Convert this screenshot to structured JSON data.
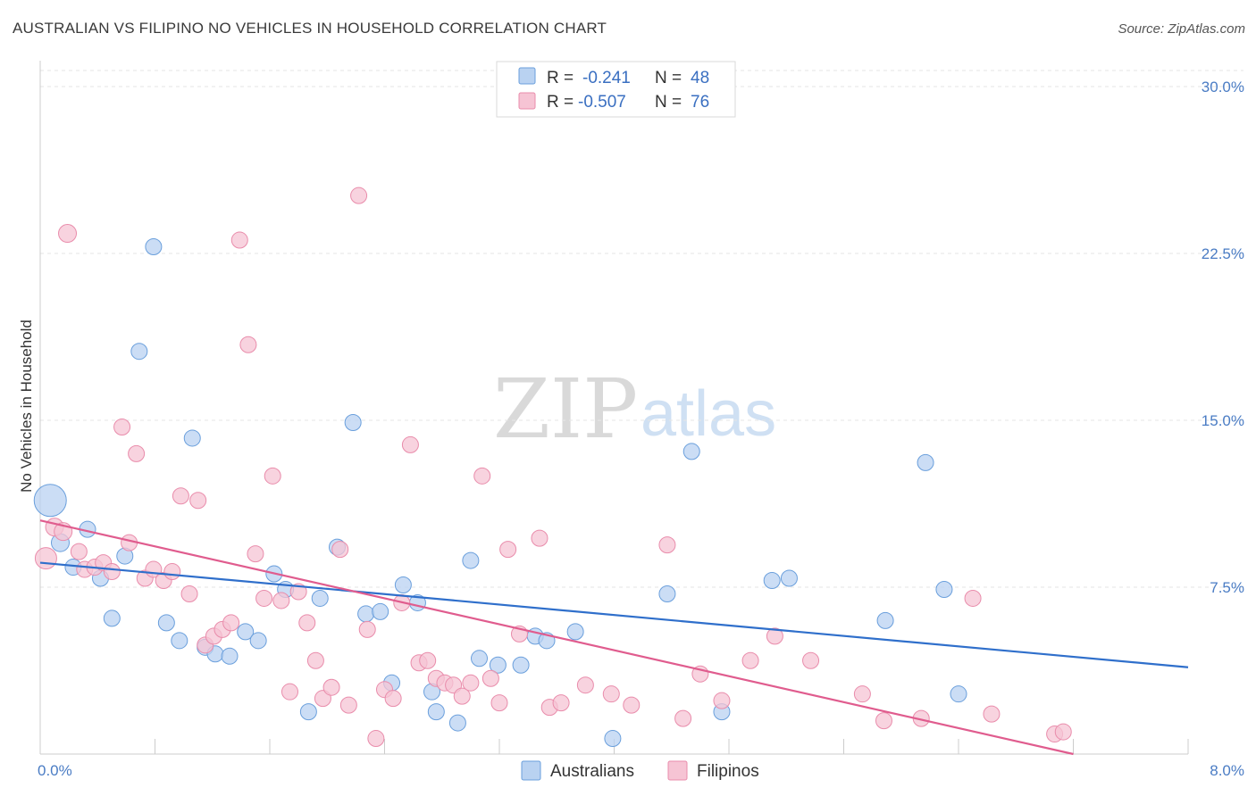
{
  "title": "AUSTRALIAN VS FILIPINO NO VEHICLES IN HOUSEHOLD CORRELATION CHART",
  "source": "Source: ZipAtlas.com",
  "watermark": {
    "zip": "ZIP",
    "atlas": "atlas"
  },
  "chart_data": {
    "type": "scatter",
    "title": "AUSTRALIAN VS FILIPINO NO VEHICLES IN HOUSEHOLD CORRELATION CHART",
    "xlabel": "",
    "ylabel": "No Vehicles in Household",
    "xlim": [
      0,
      8
    ],
    "ylim": [
      0,
      30
    ],
    "x_tick_labels": [
      "0.0%",
      "8.0%"
    ],
    "y_ticks": [
      7.5,
      15.0,
      22.5,
      30.0
    ],
    "y_tick_labels": [
      "7.5%",
      "15.0%",
      "22.5%",
      "30.0%"
    ],
    "grid": true,
    "legend": [
      {
        "name": "Australians",
        "r_label": "R =",
        "r": "-0.241",
        "n_label": "N =",
        "n": "48",
        "color": "#6a9fdc",
        "fill": "#b9d2f1",
        "line": "#2f6fcb"
      },
      {
        "name": "Filipinos",
        "r_label": "R =",
        "r": "-0.507",
        "n_label": "N =",
        "n": "76",
        "color": "#e98cab",
        "fill": "#f6c4d4",
        "line": "#e05c8e"
      }
    ],
    "series": [
      {
        "name": "Australians",
        "trend": {
          "x": [
            0.0,
            8.0
          ],
          "y": [
            8.6,
            3.9
          ]
        },
        "points": [
          [
            0.07,
            11.4,
            18
          ],
          [
            0.14,
            9.5,
            10
          ],
          [
            0.23,
            8.4,
            9
          ],
          [
            0.33,
            10.1,
            9
          ],
          [
            0.42,
            7.9,
            9
          ],
          [
            0.5,
            6.1,
            9
          ],
          [
            0.59,
            8.9,
            9
          ],
          [
            0.69,
            18.1,
            9
          ],
          [
            0.79,
            22.8,
            9
          ],
          [
            0.88,
            5.9,
            9
          ],
          [
            0.97,
            5.1,
            9
          ],
          [
            1.06,
            14.2,
            9
          ],
          [
            1.15,
            4.8,
            9
          ],
          [
            1.22,
            4.5,
            9
          ],
          [
            1.32,
            4.4,
            9
          ],
          [
            1.43,
            5.5,
            9
          ],
          [
            1.52,
            5.1,
            9
          ],
          [
            1.63,
            8.1,
            9
          ],
          [
            1.71,
            7.4,
            9
          ],
          [
            1.87,
            1.9,
            9
          ],
          [
            1.95,
            7.0,
            9
          ],
          [
            2.07,
            9.3,
            9
          ],
          [
            2.18,
            14.9,
            9
          ],
          [
            2.27,
            6.3,
            9
          ],
          [
            2.37,
            6.4,
            9
          ],
          [
            2.45,
            3.2,
            9
          ],
          [
            2.53,
            7.6,
            9
          ],
          [
            2.63,
            6.8,
            9
          ],
          [
            2.73,
            2.8,
            9
          ],
          [
            2.76,
            1.9,
            9
          ],
          [
            2.91,
            1.4,
            9
          ],
          [
            3.0,
            8.7,
            9
          ],
          [
            3.06,
            4.3,
            9
          ],
          [
            3.19,
            4.0,
            9
          ],
          [
            3.35,
            4.0,
            9
          ],
          [
            3.45,
            5.3,
            9
          ],
          [
            3.53,
            5.1,
            9
          ],
          [
            3.73,
            5.5,
            9
          ],
          [
            3.99,
            0.7,
            9
          ],
          [
            4.37,
            7.2,
            9
          ],
          [
            4.54,
            13.6,
            9
          ],
          [
            4.75,
            1.9,
            9
          ],
          [
            5.1,
            7.8,
            9
          ],
          [
            5.22,
            7.9,
            9
          ],
          [
            5.89,
            6.0,
            9
          ],
          [
            6.17,
            13.1,
            9
          ],
          [
            6.3,
            7.4,
            9
          ],
          [
            6.4,
            2.7,
            9
          ]
        ]
      },
      {
        "name": "Filipinos",
        "trend": {
          "x": [
            0.0,
            7.2
          ],
          "y": [
            10.5,
            0.0
          ]
        },
        "points": [
          [
            0.04,
            8.8,
            12
          ],
          [
            0.1,
            10.2,
            10
          ],
          [
            0.16,
            10.0,
            10
          ],
          [
            0.19,
            23.4,
            10
          ],
          [
            0.27,
            9.1,
            9
          ],
          [
            0.31,
            8.3,
            9
          ],
          [
            0.38,
            8.4,
            9
          ],
          [
            0.44,
            8.6,
            9
          ],
          [
            0.5,
            8.2,
            9
          ],
          [
            0.57,
            14.7,
            9
          ],
          [
            0.62,
            9.5,
            9
          ],
          [
            0.67,
            13.5,
            9
          ],
          [
            0.73,
            7.9,
            9
          ],
          [
            0.79,
            8.3,
            9
          ],
          [
            0.86,
            7.8,
            9
          ],
          [
            0.92,
            8.2,
            9
          ],
          [
            0.98,
            11.6,
            9
          ],
          [
            1.04,
            7.2,
            9
          ],
          [
            1.1,
            11.4,
            9
          ],
          [
            1.15,
            4.9,
            9
          ],
          [
            1.21,
            5.3,
            9
          ],
          [
            1.27,
            5.6,
            9
          ],
          [
            1.33,
            5.9,
            9
          ],
          [
            1.39,
            23.1,
            9
          ],
          [
            1.45,
            18.4,
            9
          ],
          [
            1.5,
            9.0,
            9
          ],
          [
            1.56,
            7.0,
            9
          ],
          [
            1.62,
            12.5,
            9
          ],
          [
            1.68,
            6.9,
            9
          ],
          [
            1.74,
            2.8,
            9
          ],
          [
            1.8,
            7.3,
            9
          ],
          [
            1.86,
            5.9,
            9
          ],
          [
            1.92,
            4.2,
            9
          ],
          [
            1.97,
            2.5,
            9
          ],
          [
            2.03,
            3.0,
            9
          ],
          [
            2.09,
            9.2,
            9
          ],
          [
            2.15,
            2.2,
            9
          ],
          [
            2.22,
            25.1,
            9
          ],
          [
            2.28,
            5.6,
            9
          ],
          [
            2.34,
            0.7,
            9
          ],
          [
            2.4,
            2.9,
            9
          ],
          [
            2.46,
            2.5,
            9
          ],
          [
            2.52,
            6.8,
            9
          ],
          [
            2.58,
            13.9,
            9
          ],
          [
            2.64,
            4.1,
            9
          ],
          [
            2.7,
            4.2,
            9
          ],
          [
            2.76,
            3.4,
            9
          ],
          [
            2.82,
            3.2,
            9
          ],
          [
            2.88,
            3.1,
            9
          ],
          [
            2.94,
            2.6,
            9
          ],
          [
            3.0,
            3.2,
            9
          ],
          [
            3.08,
            12.5,
            9
          ],
          [
            3.14,
            3.4,
            9
          ],
          [
            3.2,
            2.3,
            9
          ],
          [
            3.26,
            9.2,
            9
          ],
          [
            3.34,
            5.4,
            9
          ],
          [
            3.48,
            9.7,
            9
          ],
          [
            3.55,
            2.1,
            9
          ],
          [
            3.63,
            2.3,
            9
          ],
          [
            3.8,
            3.1,
            9
          ],
          [
            3.98,
            2.7,
            9
          ],
          [
            4.12,
            2.2,
            9
          ],
          [
            4.37,
            9.4,
            9
          ],
          [
            4.48,
            1.6,
            9
          ],
          [
            4.6,
            3.6,
            9
          ],
          [
            4.75,
            2.4,
            9
          ],
          [
            4.95,
            4.2,
            9
          ],
          [
            5.12,
            5.3,
            9
          ],
          [
            5.37,
            4.2,
            9
          ],
          [
            5.73,
            2.7,
            9
          ],
          [
            5.88,
            1.5,
            9
          ],
          [
            6.14,
            1.6,
            9
          ],
          [
            6.5,
            7.0,
            9
          ],
          [
            6.63,
            1.8,
            9
          ],
          [
            7.07,
            0.9,
            9
          ],
          [
            7.13,
            1.0,
            9
          ]
        ]
      }
    ]
  }
}
